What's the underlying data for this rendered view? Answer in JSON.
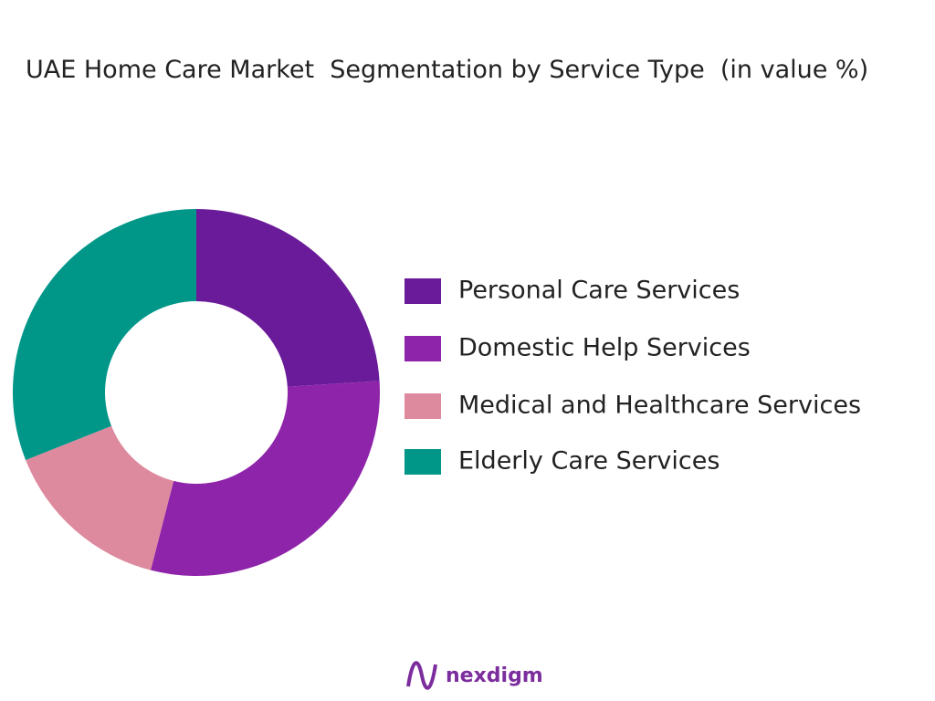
{
  "chart_data": {
    "type": "donut",
    "title": "UAE Home Care Market  Segmentation by Service Type  (in value %)",
    "categories": [
      "Personal Care Services",
      "Domestic Help Services",
      "Medical and Healthcare Services",
      "Elderly Care Services"
    ],
    "values": [
      24,
      30,
      15,
      31
    ],
    "colors": [
      "#6a1b9a",
      "#8e24aa",
      "#de8a9e",
      "#009688"
    ],
    "legend": "right"
  },
  "brand": "nexdigm"
}
